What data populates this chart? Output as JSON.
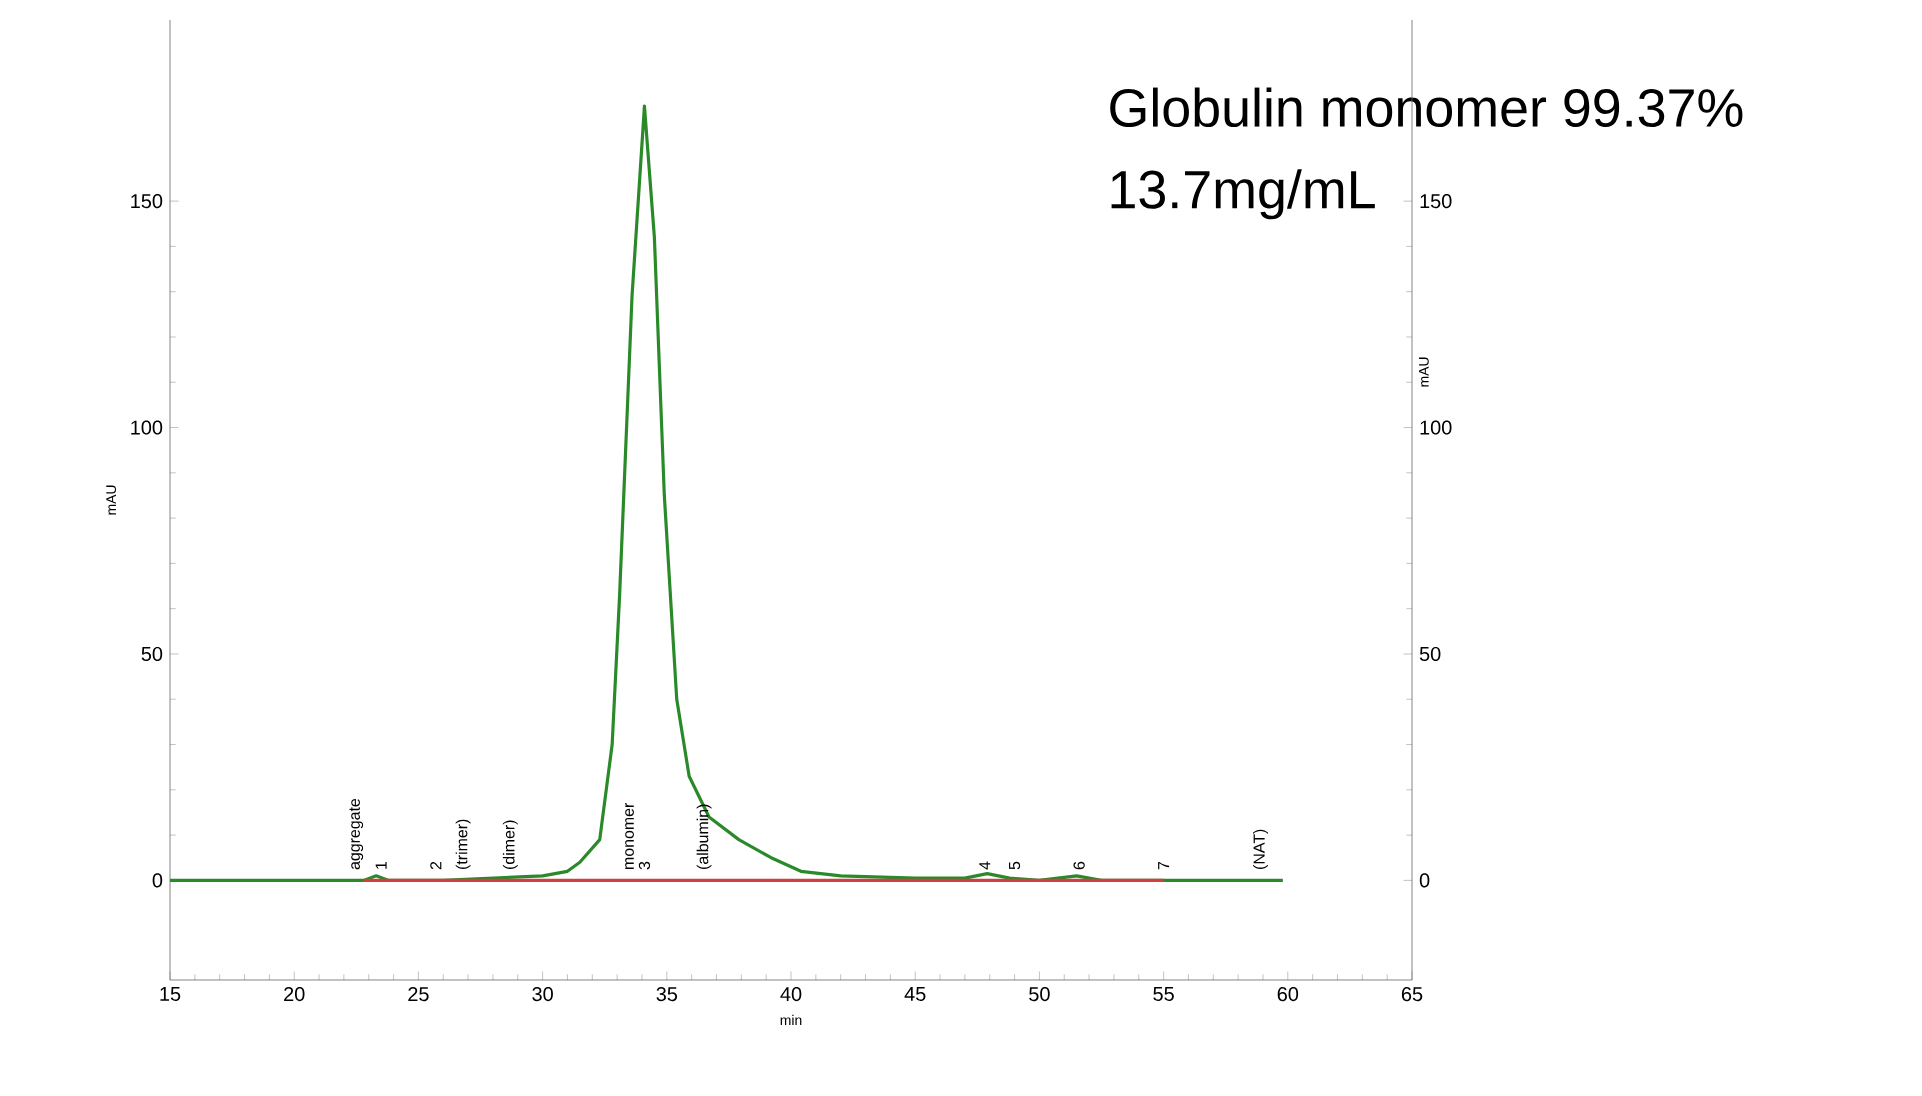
{
  "chart_data": {
    "type": "line",
    "xlabel": "min",
    "ylabel": "mAU",
    "y2label": "mAU",
    "xlim": [
      15,
      65
    ],
    "xticks": [
      15,
      20,
      25,
      30,
      35,
      40,
      45,
      50,
      55,
      60,
      65
    ],
    "ylim": [
      -22,
      190
    ],
    "yticks": [
      0,
      50,
      100,
      150
    ],
    "y2lim": [
      -22,
      190
    ],
    "y2ticks": [
      0,
      50,
      100,
      150
    ],
    "series": [
      {
        "color": "#2a8a2a",
        "x": [
          15,
          22.8,
          23.3,
          23.8,
          26,
          28,
          30,
          31,
          31.5,
          32.3,
          32.8,
          33.1,
          33.6,
          34.1,
          34.5,
          34.9,
          35.4,
          35.9,
          36.7,
          37.9,
          39.2,
          40.4,
          42,
          45,
          47,
          47.9,
          48.8,
          50,
          51.5,
          52.5,
          55,
          59.8
        ],
        "values": [
          0,
          0,
          1,
          0,
          0,
          0.5,
          1,
          2,
          4,
          9,
          30,
          63,
          129,
          171,
          142,
          85,
          40,
          23,
          14,
          9,
          5,
          2,
          1,
          0.5,
          0.5,
          1.5,
          0.5,
          0,
          1,
          0,
          0,
          0
        ]
      },
      {
        "color": "#d04040",
        "x": [
          22.8,
          55
        ],
        "values": [
          0,
          0
        ]
      }
    ],
    "annotations": [
      {
        "text": "aggregate",
        "x": 22.5,
        "y": 0
      },
      {
        "text": "1",
        "x": 23.5,
        "y": 0
      },
      {
        "text": "2",
        "x": 25.7,
        "y": 0
      },
      {
        "text": "(trimer)",
        "x": 26.8,
        "y": 0
      },
      {
        "text": "(dimer)",
        "x": 28.7,
        "y": 0
      },
      {
        "text": "monomer",
        "x": 33.5,
        "y": 0
      },
      {
        "text": "3",
        "x": 34.1,
        "y": 0
      },
      {
        "text": "(albumin)",
        "x": 36.5,
        "y": 0
      },
      {
        "text": "4",
        "x": 47.8,
        "y": 0
      },
      {
        "text": "5",
        "x": 49.0,
        "y": 0
      },
      {
        "text": "6",
        "x": 51.6,
        "y": 0
      },
      {
        "text": "7",
        "x": 55.0,
        "y": 0
      },
      {
        "text": "(NAT)",
        "x": 58.9,
        "y": 0
      },
      "Globulin monomer 99.37%",
      "13.7mg/mL"
    ]
  }
}
